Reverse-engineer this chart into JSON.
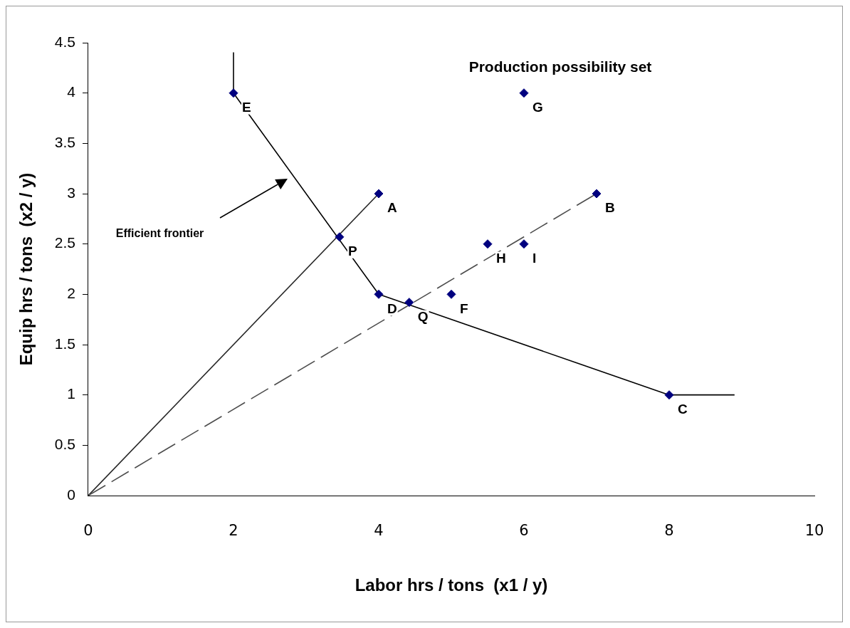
{
  "chart_data": {
    "type": "scatter",
    "xlabel": "Labor hrs / tons  (x1 / y)",
    "ylabel": "Equip hrs / tons  (x2 / y)",
    "xlim": [
      0,
      10
    ],
    "xticks": [
      0,
      2,
      4,
      6,
      8,
      10
    ],
    "ylim": [
      0,
      4.5
    ],
    "yticks": [
      0,
      0.5,
      1,
      1.5,
      2,
      2.5,
      3,
      3.5,
      4,
      4.5
    ],
    "grid": false,
    "legend": false,
    "marker": "diamond",
    "series": [
      {
        "type": "line",
        "color": "#000000",
        "x": [
          2,
          2,
          4,
          8,
          8.9
        ],
        "values": [
          4.4,
          4,
          2,
          1,
          1
        ],
        "marker": "none",
        "line_style": "solid"
      },
      {
        "type": "line",
        "color": "#262626",
        "x": [
          0,
          4
        ],
        "values": [
          0,
          3
        ],
        "marker": "none",
        "line_style": "solid"
      },
      {
        "type": "line",
        "color": "#4d4d4d",
        "x": [
          0,
          7
        ],
        "values": [
          0,
          3
        ],
        "marker": "none",
        "line_style": "dashed"
      },
      {
        "color": "#00007f",
        "x": [
          4,
          7,
          8,
          4,
          2,
          5,
          6,
          5.5,
          6,
          3.46,
          4.42
        ],
        "values": [
          3,
          3,
          1,
          2,
          4,
          2,
          4,
          2.5,
          2.5,
          2.57,
          1.92
        ]
      }
    ],
    "annotations": [
      "Production possibility set",
      "Efficient frontier",
      {
        "text": "A",
        "x": 4,
        "y": 3
      },
      {
        "text": "B",
        "x": 7,
        "y": 3
      },
      {
        "text": "C",
        "x": 8,
        "y": 1
      },
      {
        "text": "D",
        "x": 4,
        "y": 2
      },
      {
        "text": "E",
        "x": 2,
        "y": 4
      },
      {
        "text": "F",
        "x": 5,
        "y": 2
      },
      {
        "text": "G",
        "x": 6,
        "y": 4
      },
      {
        "text": "H",
        "x": 5.5,
        "y": 2.5
      },
      {
        "text": "I",
        "x": 6,
        "y": 2.5
      },
      {
        "text": "P",
        "x": 3.46,
        "y": 2.57
      },
      {
        "text": "Q",
        "x": 4.42,
        "y": 1.92
      }
    ]
  }
}
